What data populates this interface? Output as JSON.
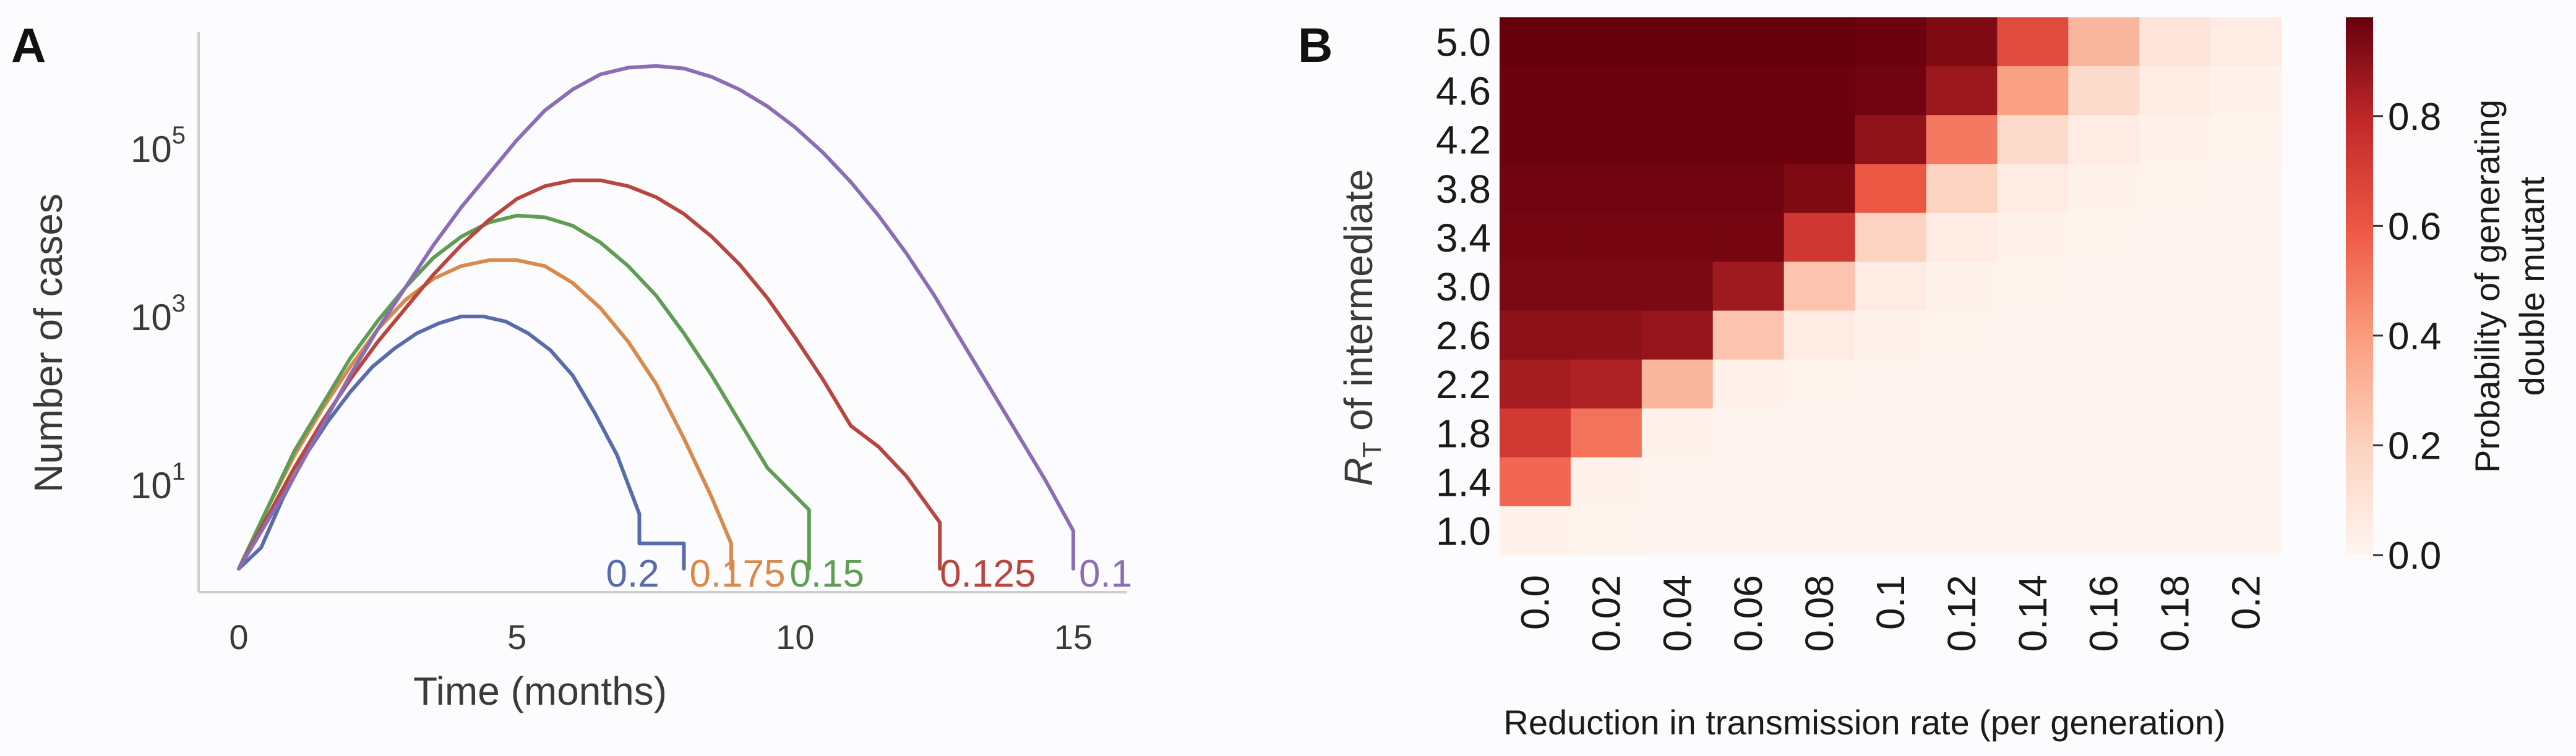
{
  "chart_data": [
    {
      "panel_label": "A",
      "type": "line",
      "xlabel": "Time (months)",
      "ylabel": "Number of cases",
      "y_scale": "log",
      "xlim": [
        -0.5,
        16
      ],
      "ylim_log10": [
        -0.3,
        6.6
      ],
      "x_ticks": [
        0,
        5,
        10,
        15
      ],
      "x_tick_labels": [
        "0",
        "5",
        "10",
        "15"
      ],
      "y_ticks_log10": [
        1,
        3,
        5
      ],
      "y_tick_labels": [
        {
          "base": "10",
          "exp": "1"
        },
        {
          "base": "10",
          "exp": "3"
        },
        {
          "base": "10",
          "exp": "5"
        }
      ],
      "series": [
        {
          "name": "0.2",
          "color": "#5a6bab",
          "label_pos": [
            6.6,
            -0.05
          ],
          "x": [
            0,
            0.4,
            0.8,
            1.2,
            1.6,
            2.0,
            2.4,
            2.8,
            3.2,
            3.6,
            4.0,
            4.4,
            4.8,
            5.2,
            5.6,
            6.0,
            6.4,
            6.8,
            7.2,
            7.2,
            8.0,
            8.0
          ],
          "y_log10": [
            0,
            0.25,
            0.85,
            1.35,
            1.75,
            2.1,
            2.4,
            2.62,
            2.8,
            2.92,
            3.0,
            3.0,
            2.94,
            2.8,
            2.6,
            2.3,
            1.85,
            1.35,
            0.65,
            0.3,
            0.3,
            0
          ]
        },
        {
          "name": "0.175",
          "color": "#d98a4a",
          "label_pos": [
            8.1,
            -0.05
          ],
          "x": [
            0,
            0.5,
            1.0,
            1.5,
            2.0,
            2.5,
            3.0,
            3.5,
            4.0,
            4.5,
            5.0,
            5.5,
            6.0,
            6.5,
            7.0,
            7.5,
            8.0,
            8.5,
            8.85,
            8.85
          ],
          "y_log10": [
            0,
            0.7,
            1.35,
            1.9,
            2.4,
            2.85,
            3.2,
            3.45,
            3.6,
            3.67,
            3.67,
            3.6,
            3.4,
            3.1,
            2.7,
            2.2,
            1.55,
            0.85,
            0.3,
            0
          ]
        },
        {
          "name": "0.15",
          "color": "#5f9c54",
          "label_pos": [
            9.9,
            -0.05
          ],
          "x": [
            0,
            0.5,
            1.0,
            1.5,
            2.0,
            2.5,
            3.0,
            3.5,
            4.0,
            4.5,
            5.0,
            5.5,
            6.0,
            6.5,
            7.0,
            7.5,
            8.0,
            8.5,
            9.0,
            9.5,
            10.25,
            10.25
          ],
          "y_log10": [
            0,
            0.7,
            1.4,
            1.95,
            2.5,
            2.95,
            3.35,
            3.7,
            3.95,
            4.12,
            4.2,
            4.18,
            4.08,
            3.88,
            3.6,
            3.25,
            2.8,
            2.3,
            1.75,
            1.2,
            0.7,
            0
          ]
        },
        {
          "name": "0.125",
          "color": "#b8463e",
          "label_pos": [
            12.6,
            -0.05
          ],
          "x": [
            0,
            0.5,
            1.0,
            1.5,
            2.0,
            2.5,
            3.0,
            3.5,
            4.0,
            4.5,
            5.0,
            5.5,
            6.0,
            6.5,
            7.0,
            7.5,
            8.0,
            8.5,
            9.0,
            9.5,
            10.0,
            10.5,
            11.0,
            11.5,
            12.0,
            12.6,
            12.6
          ],
          "y_log10": [
            0,
            0.6,
            1.2,
            1.75,
            2.25,
            2.7,
            3.1,
            3.5,
            3.85,
            4.15,
            4.4,
            4.55,
            4.62,
            4.62,
            4.55,
            4.42,
            4.22,
            3.95,
            3.62,
            3.22,
            2.75,
            2.25,
            1.7,
            1.45,
            1.1,
            0.55,
            0
          ]
        },
        {
          "name": "0.1",
          "color": "#8b6db5",
          "label_pos": [
            15.1,
            -0.05
          ],
          "x": [
            0,
            0.5,
            1.0,
            1.5,
            2.0,
            2.5,
            3.0,
            3.5,
            4.0,
            4.5,
            5.0,
            5.5,
            6.0,
            6.5,
            7.0,
            7.5,
            8.0,
            8.5,
            9.0,
            9.5,
            10.0,
            10.5,
            11.0,
            11.5,
            12.0,
            12.5,
            13.0,
            13.5,
            14.0,
            14.5,
            15.0,
            15.0
          ],
          "y_log10": [
            0,
            0.55,
            1.1,
            1.7,
            2.3,
            2.85,
            3.35,
            3.85,
            4.3,
            4.7,
            5.1,
            5.45,
            5.7,
            5.88,
            5.96,
            5.98,
            5.95,
            5.85,
            5.7,
            5.5,
            5.25,
            4.95,
            4.6,
            4.2,
            3.75,
            3.25,
            2.7,
            2.15,
            1.6,
            1.05,
            0.45,
            0
          ]
        }
      ]
    },
    {
      "panel_label": "B",
      "type": "heatmap",
      "xlabel": "Reduction in transmission rate (per generation)",
      "ylabel_symbol": "R",
      "ylabel_subscript": "T",
      "ylabel_rest": " of intermediate",
      "x_tick_labels": [
        "0.0",
        "0.02",
        "0.04",
        "0.06",
        "0.08",
        "0.1",
        "0.12",
        "0.14",
        "0.16",
        "0.18",
        "0.2"
      ],
      "y_tick_labels": [
        "5.0",
        "4.6",
        "4.2",
        "3.8",
        "3.4",
        "3.0",
        "2.6",
        "2.2",
        "1.8",
        "1.4",
        "1.0"
      ],
      "values": [
        [
          0.98,
          0.98,
          0.98,
          0.98,
          0.98,
          0.97,
          0.93,
          0.65,
          0.3,
          0.1,
          0.05
        ],
        [
          0.97,
          0.97,
          0.97,
          0.97,
          0.97,
          0.96,
          0.87,
          0.38,
          0.15,
          0.05,
          0.02
        ],
        [
          0.97,
          0.97,
          0.97,
          0.97,
          0.97,
          0.89,
          0.5,
          0.15,
          0.05,
          0.02,
          0.01
        ],
        [
          0.96,
          0.96,
          0.96,
          0.96,
          0.93,
          0.6,
          0.2,
          0.05,
          0.02,
          0.01,
          0.0
        ],
        [
          0.95,
          0.95,
          0.95,
          0.95,
          0.73,
          0.2,
          0.05,
          0.02,
          0.01,
          0.0,
          0.0
        ],
        [
          0.94,
          0.94,
          0.94,
          0.86,
          0.25,
          0.05,
          0.02,
          0.01,
          0.0,
          0.0,
          0.0
        ],
        [
          0.9,
          0.9,
          0.88,
          0.25,
          0.05,
          0.02,
          0.01,
          0.0,
          0.0,
          0.0,
          0.0
        ],
        [
          0.85,
          0.83,
          0.3,
          0.03,
          0.01,
          0.0,
          0.0,
          0.0,
          0.0,
          0.0,
          0.0
        ],
        [
          0.72,
          0.52,
          0.02,
          0.0,
          0.0,
          0.0,
          0.0,
          0.0,
          0.0,
          0.0,
          0.0
        ],
        [
          0.55,
          0.02,
          0.0,
          0.0,
          0.0,
          0.0,
          0.0,
          0.0,
          0.0,
          0.0,
          0.0
        ],
        [
          0.02,
          0.01,
          0.0,
          0.0,
          0.0,
          0.0,
          0.0,
          0.0,
          0.0,
          0.0,
          0.0
        ]
      ],
      "colorbar": {
        "label_line1": "Probability of generating",
        "label_line2": "double mutant",
        "range": [
          0.0,
          0.98
        ],
        "ticks": [
          0.0,
          0.2,
          0.4,
          0.6,
          0.8
        ],
        "tick_labels": [
          "0.0",
          "0.2",
          "0.4",
          "0.6",
          "0.8"
        ],
        "colormap": "Reds"
      }
    }
  ]
}
